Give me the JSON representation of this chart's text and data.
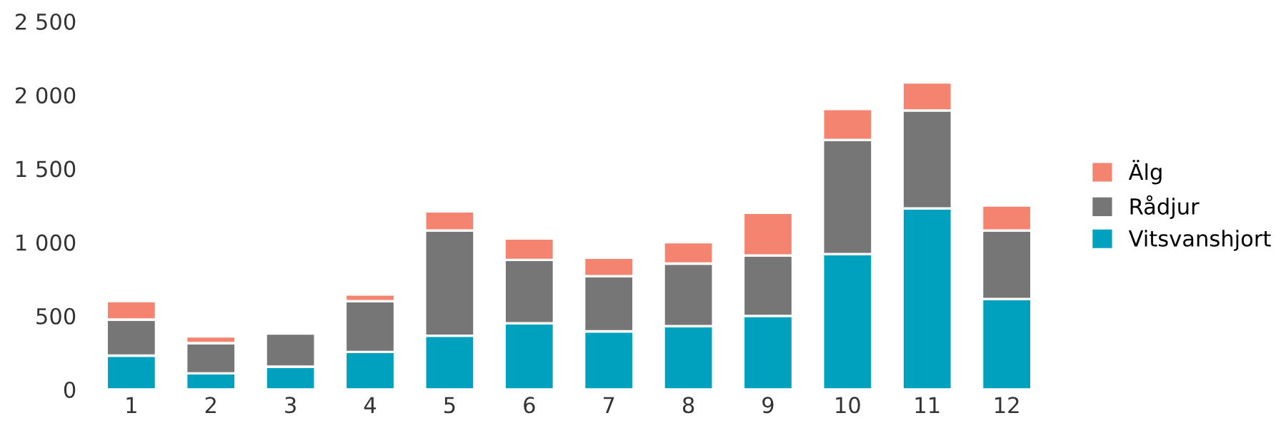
{
  "chart_data": {
    "type": "bar",
    "stacked": true,
    "categories": [
      "1",
      "2",
      "3",
      "4",
      "5",
      "6",
      "7",
      "8",
      "9",
      "10",
      "11",
      "12"
    ],
    "series": [
      {
        "name": "Vitsvanshjort",
        "color": "#00a0bf",
        "values": [
          230,
          110,
          155,
          255,
          365,
          450,
          395,
          430,
          500,
          920,
          1230,
          615
        ]
      },
      {
        "name": "Rådjur",
        "color": "#767676",
        "values": [
          245,
          205,
          225,
          345,
          715,
          430,
          375,
          425,
          410,
          775,
          665,
          465
        ]
      },
      {
        "name": "Älg",
        "color": "#f4846f",
        "values": [
          125,
          45,
          null,
          45,
          130,
          145,
          125,
          145,
          290,
          210,
          190,
          170
        ]
      }
    ],
    "ylim": [
      0,
      2500
    ],
    "yticks": [
      0,
      500,
      {
        "value": 1000,
        "label": "1 000"
      },
      {
        "value": 1500,
        "label": "1 500"
      },
      {
        "value": 2000,
        "label": "2 000"
      },
      {
        "value": 2500,
        "label": "2 500"
      }
    ],
    "legend": "right",
    "grid": false
  }
}
